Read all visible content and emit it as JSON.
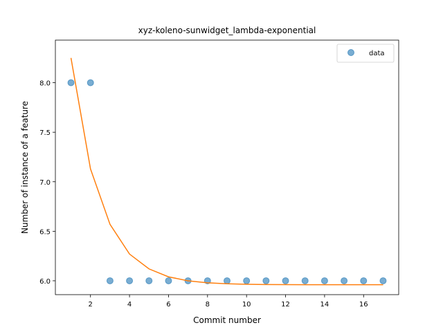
{
  "chart_data": {
    "type": "scatter",
    "title": "xyz-koleno-sunwidget_lambda-exponential",
    "xlabel": "Commit number",
    "ylabel": "Number of instance of a feature",
    "xlim": [
      0.2,
      17.8
    ],
    "ylim": [
      5.86,
      8.43
    ],
    "xticks": [
      2,
      4,
      6,
      8,
      10,
      12,
      14,
      16
    ],
    "yticks": [
      6.0,
      6.5,
      7.0,
      7.5,
      8.0
    ],
    "ytick_labels": [
      "6.0",
      "6.5",
      "7.0",
      "7.5",
      "8.0"
    ],
    "grid": false,
    "legend": "top-right",
    "series": [
      {
        "name": "data",
        "kind": "scatter",
        "color": "#1f77b4",
        "x": [
          1,
          2,
          3,
          4,
          5,
          6,
          7,
          8,
          9,
          10,
          11,
          12,
          13,
          14,
          15,
          16,
          17
        ],
        "y": [
          8,
          8,
          6,
          6,
          6,
          6,
          6,
          6,
          6,
          6,
          6,
          6,
          6,
          6,
          6,
          6,
          6
        ]
      },
      {
        "kind": "line",
        "color": "#ff7f0e",
        "x": [
          1,
          2,
          3,
          4,
          5,
          6,
          7,
          8,
          9,
          10,
          11,
          12,
          13,
          14,
          15,
          16,
          17
        ],
        "y": [
          8.25,
          7.13,
          6.57,
          6.27,
          6.12,
          6.04,
          6.0,
          5.98,
          5.97,
          5.965,
          5.962,
          5.961,
          5.96,
          5.96,
          5.96,
          5.96,
          5.96
        ]
      }
    ]
  }
}
